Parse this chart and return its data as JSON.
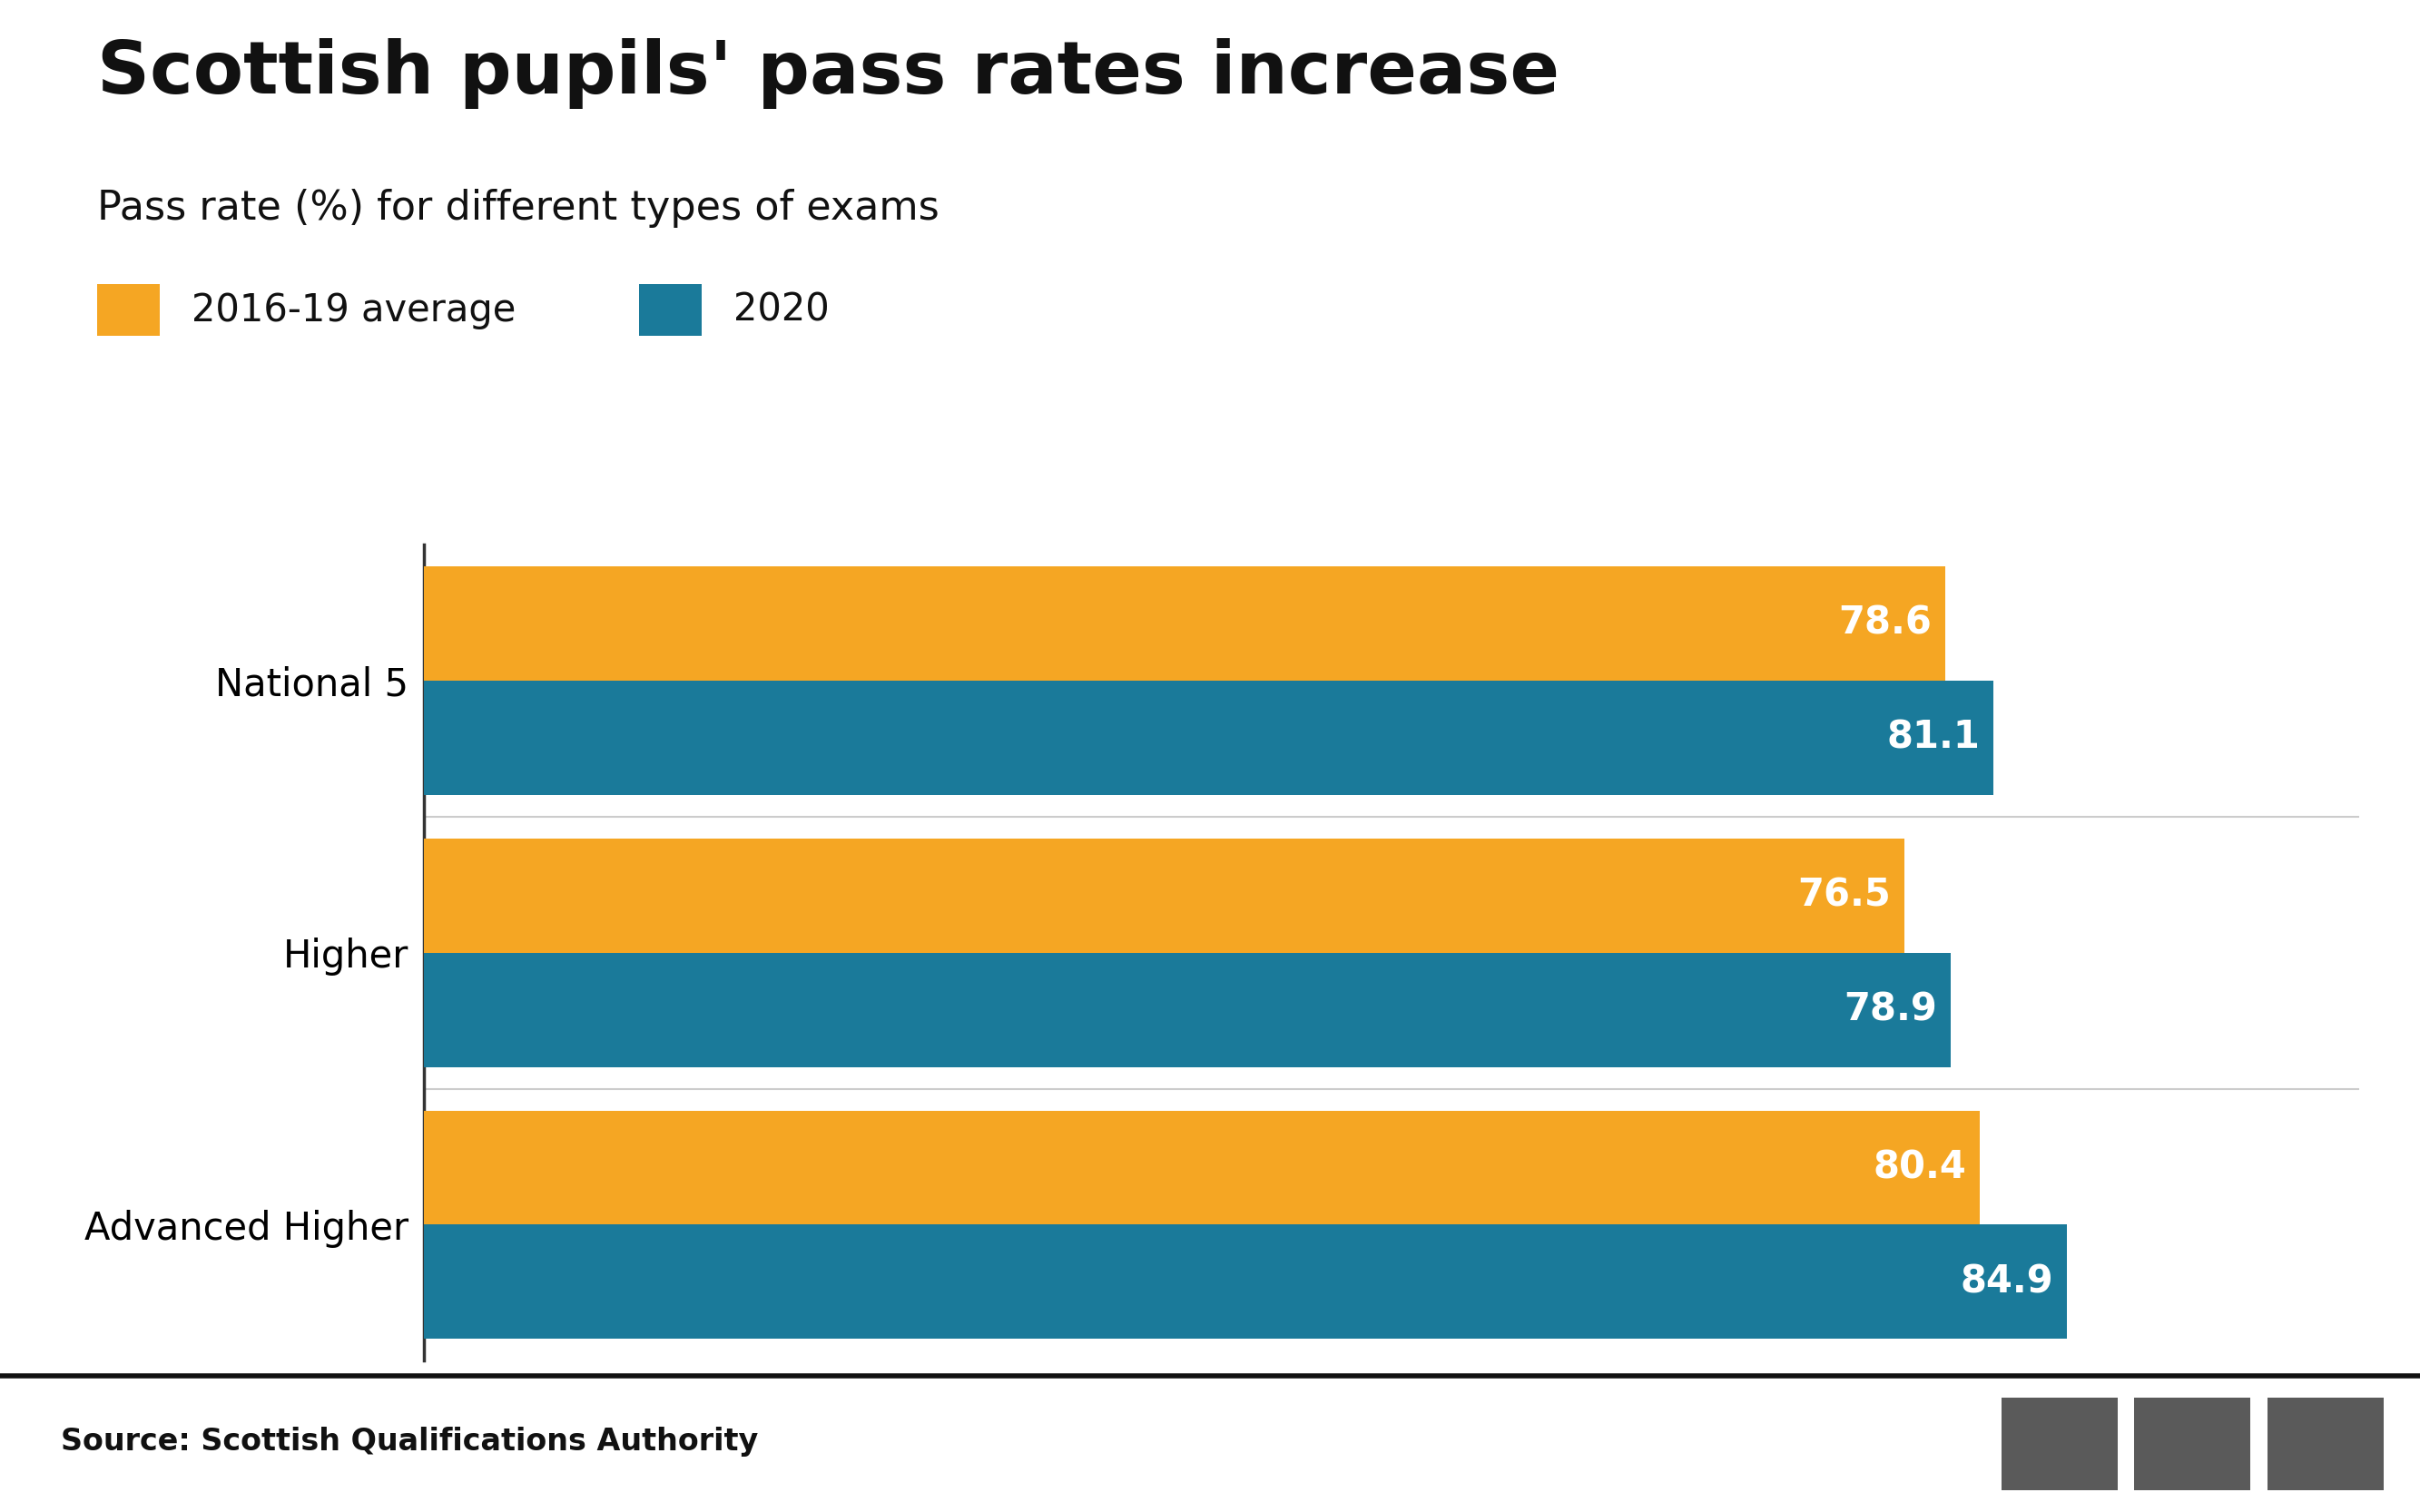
{
  "title": "Scottish pupils' pass rates increase",
  "subtitle": "Pass rate (%) for different types of exams",
  "categories": [
    "Advanced Higher",
    "Higher",
    "National 5"
  ],
  "values_avg": [
    80.4,
    76.5,
    78.6
  ],
  "values_2020": [
    84.9,
    78.9,
    81.1
  ],
  "color_avg": "#F5A623",
  "color_2020": "#1A7A9A",
  "legend_labels": [
    "2016-19 average",
    "2020"
  ],
  "source": "Source: Scottish Qualifications Authority",
  "title_fontsize": 58,
  "subtitle_fontsize": 32,
  "legend_fontsize": 30,
  "bar_label_fontsize": 30,
  "ytick_fontsize": 30,
  "source_fontsize": 24,
  "background_color": "#ffffff",
  "xlim": [
    0,
    100
  ],
  "bar_height": 0.42,
  "footer_bg": "#f5f5f5",
  "footer_line_color": "#111111",
  "bbc_box_color": "#5a5a5a",
  "gridline_color": "#cccccc",
  "spine_color": "#333333"
}
